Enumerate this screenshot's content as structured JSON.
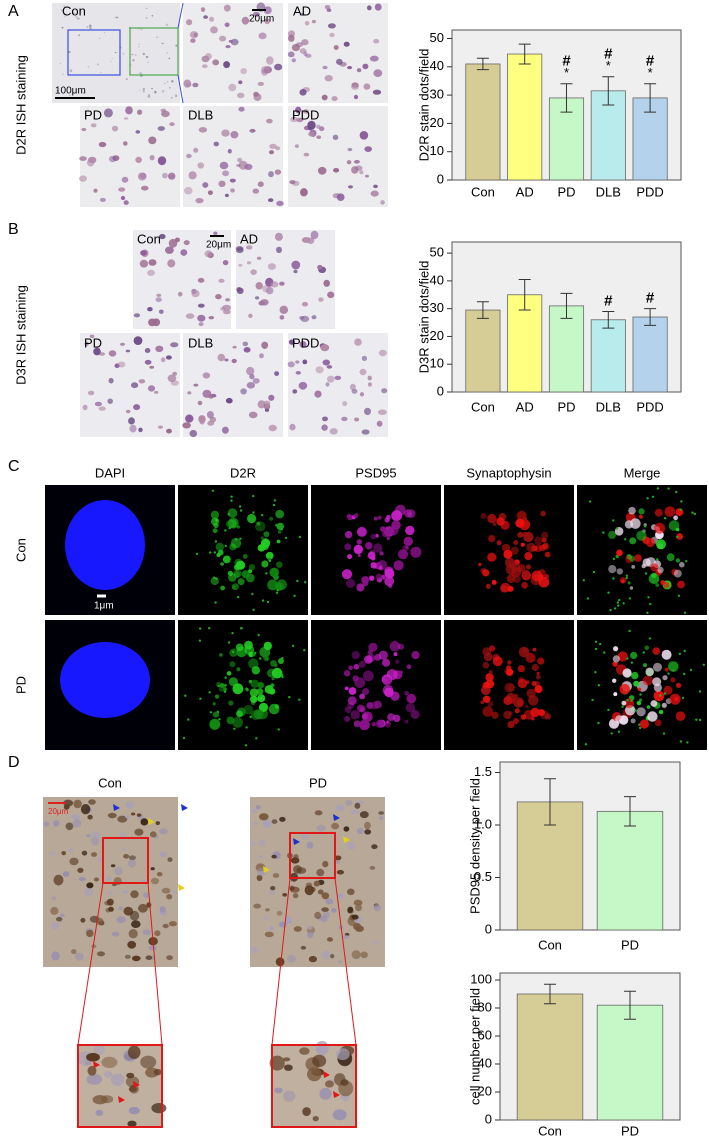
{
  "panel_letters": [
    "A",
    "B",
    "C",
    "D"
  ],
  "panel_a": {
    "side_label": "D2R ISH staining",
    "images": [
      "Con",
      "AD",
      "PD",
      "DLB",
      "PDD"
    ],
    "scale_bars": [
      "100μm",
      "20μm"
    ]
  },
  "panel_b": {
    "side_label": "D3R ISH staining",
    "images": [
      "Con",
      "AD",
      "PD",
      "DLB",
      "PDD"
    ],
    "scale_bar": "20μm"
  },
  "panel_c": {
    "columns": [
      "DAPI",
      "D2R",
      "PSD95",
      "Synaptophysin",
      "Merge"
    ],
    "rows": [
      "Con",
      "PD"
    ],
    "scale_bar": "1μm"
  },
  "panel_d": {
    "groups": [
      "Con",
      "PD"
    ],
    "scale_bar": "20μm"
  },
  "chart_data": [
    {
      "type": "bar",
      "y_label": "D2R stain dots/field",
      "categories": [
        "Con",
        "AD",
        "PD",
        "DLB",
        "PDD"
      ],
      "values": [
        41,
        44.5,
        29,
        31.5,
        29
      ],
      "errors": [
        2,
        3.5,
        5,
        5,
        5
      ],
      "colors": [
        "#d6cc96",
        "#ffff80",
        "#c6f7c6",
        "#b8ecec",
        "#b4d2ec"
      ],
      "annotations": [
        null,
        null,
        [
          "#",
          "*"
        ],
        [
          "#",
          "*"
        ],
        [
          "#",
          "*"
        ]
      ],
      "ylim": [
        0,
        53
      ],
      "yticks": [
        0,
        10,
        20,
        30,
        40,
        50
      ]
    },
    {
      "type": "bar",
      "y_label": "D3R stain dots/field",
      "categories": [
        "Con",
        "AD",
        "PD",
        "DLB",
        "PDD"
      ],
      "values": [
        29.5,
        35,
        31,
        26,
        27
      ],
      "errors": [
        3,
        5.5,
        4.5,
        3,
        3
      ],
      "colors": [
        "#d6cc96",
        "#ffff80",
        "#c6f7c6",
        "#b8ecec",
        "#b4d2ec"
      ],
      "annotations": [
        null,
        null,
        null,
        [
          "#"
        ],
        [
          "#"
        ]
      ],
      "ylim": [
        0,
        54
      ],
      "yticks": [
        0,
        10,
        20,
        30,
        40,
        50
      ]
    },
    {
      "type": "bar",
      "y_label": "PSD95 density  per field",
      "categories": [
        "Con",
        "PD"
      ],
      "values": [
        1.22,
        1.13
      ],
      "errors": [
        0.22,
        0.14
      ],
      "colors": [
        "#d6cc96",
        "#c6f7c6"
      ],
      "ylim": [
        0,
        1.6
      ],
      "yticks": [
        0,
        0.5,
        {
          "value": 1,
          "label": "1.0"
        },
        1.5
      ]
    },
    {
      "type": "bar",
      "y_label": "cell number  per field",
      "categories": [
        "Con",
        "PD"
      ],
      "values": [
        90,
        82
      ],
      "errors": [
        7,
        10
      ],
      "colors": [
        "#d6cc96",
        "#c6f7c6"
      ],
      "ylim": [
        0,
        105
      ],
      "yticks": [
        0,
        20,
        40,
        60,
        80,
        100
      ]
    }
  ]
}
